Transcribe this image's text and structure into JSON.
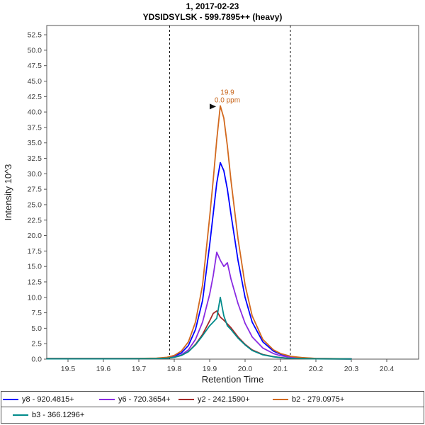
{
  "title": {
    "line1": "1, 2017-02-23",
    "line2": "YDSIDSYLSK - 599.7895++ (heavy)"
  },
  "chart_data": {
    "type": "line",
    "title": "1, 2017-02-23 | YDSIDSYLSK - 599.7895++ (heavy)",
    "xlabel": "Retention Time",
    "ylabel": "Intensity 10^3",
    "xlim": [
      19.44,
      20.49
    ],
    "ylim": [
      0,
      54
    ],
    "x_tick_labels": [
      "19.5",
      "19.6",
      "19.7",
      "19.8",
      "19.9",
      "20.0",
      "20.1",
      "20.2",
      "20.3",
      "20.4"
    ],
    "y_tick_labels": [
      "0.0",
      "2.5",
      "5.0",
      "7.5",
      "10.0",
      "12.5",
      "15.0",
      "17.5",
      "20.0",
      "22.5",
      "25.0",
      "27.5",
      "30.0",
      "32.5",
      "35.0",
      "37.5",
      "40.0",
      "42.5",
      "45.0",
      "47.5",
      "50.0",
      "52.5"
    ],
    "integration_boundaries": [
      19.787,
      20.128
    ],
    "annotation": {
      "line1": "19.9",
      "line2": "0.0 ppm",
      "x": 19.93,
      "y": 41,
      "color": "#C8651B"
    },
    "x": [
      19.44,
      19.5,
      19.55,
      19.6,
      19.65,
      19.7,
      19.75,
      19.78,
      19.8,
      19.82,
      19.84,
      19.86,
      19.88,
      19.9,
      19.91,
      19.92,
      19.93,
      19.94,
      19.95,
      19.96,
      19.98,
      20.0,
      20.02,
      20.05,
      20.08,
      20.1,
      20.13,
      20.16,
      20.2,
      20.25,
      20.3
    ],
    "series": [
      {
        "name": "y8 - 920.4815+",
        "color": "#0000FF",
        "values": [
          0.1,
          0.1,
          0.1,
          0.1,
          0.1,
          0.1,
          0.12,
          0.25,
          0.5,
          1.0,
          2.2,
          4.8,
          9.5,
          18.5,
          23.5,
          28.5,
          31.8,
          30.5,
          27.5,
          23.5,
          16.0,
          10.0,
          6.0,
          2.8,
          1.3,
          0.8,
          0.4,
          0.22,
          0.1,
          0.07,
          0.05
        ]
      },
      {
        "name": "y6 - 720.3654+",
        "color": "#8A2BE2",
        "values": [
          0.06,
          0.06,
          0.06,
          0.06,
          0.06,
          0.07,
          0.1,
          0.2,
          0.35,
          0.7,
          1.5,
          3.2,
          6.0,
          10.5,
          13.5,
          17.3,
          16.0,
          15.0,
          15.6,
          13.0,
          9.0,
          5.8,
          3.6,
          1.8,
          0.9,
          0.55,
          0.3,
          0.15,
          0.08,
          0.05,
          0.04
        ]
      },
      {
        "name": "y2 - 242.1590+",
        "color": "#A52A2A",
        "values": [
          0.05,
          0.05,
          0.05,
          0.05,
          0.05,
          0.06,
          0.08,
          0.15,
          0.3,
          0.6,
          1.2,
          2.4,
          4.0,
          6.2,
          7.4,
          7.8,
          6.8,
          6.3,
          5.7,
          5.1,
          3.6,
          2.4,
          1.5,
          0.75,
          0.4,
          0.25,
          0.12,
          0.08,
          0.05,
          0.03,
          0.02
        ]
      },
      {
        "name": "b2 - 279.0975+",
        "color": "#D2691E",
        "values": [
          0.1,
          0.1,
          0.1,
          0.1,
          0.1,
          0.12,
          0.15,
          0.3,
          0.6,
          1.3,
          2.8,
          6.0,
          12.0,
          23.0,
          29.0,
          35.5,
          41.0,
          39.0,
          34.5,
          29.0,
          19.5,
          12.0,
          7.0,
          3.2,
          1.5,
          0.9,
          0.45,
          0.25,
          0.12,
          0.08,
          0.05
        ]
      },
      {
        "name": "b3 - 366.1296+",
        "color": "#008B8B",
        "values": [
          0.05,
          0.05,
          0.05,
          0.05,
          0.05,
          0.06,
          0.08,
          0.15,
          0.3,
          0.6,
          1.2,
          2.3,
          3.8,
          5.4,
          6.0,
          6.6,
          10.0,
          7.0,
          5.4,
          4.8,
          3.4,
          2.3,
          1.4,
          0.7,
          0.38,
          0.24,
          0.12,
          0.08,
          0.05,
          0.03,
          0.02
        ]
      }
    ],
    "legend": {
      "position": "bottom",
      "rows": [
        [
          0,
          1,
          2,
          3
        ],
        [
          4
        ]
      ]
    },
    "grid": false
  }
}
